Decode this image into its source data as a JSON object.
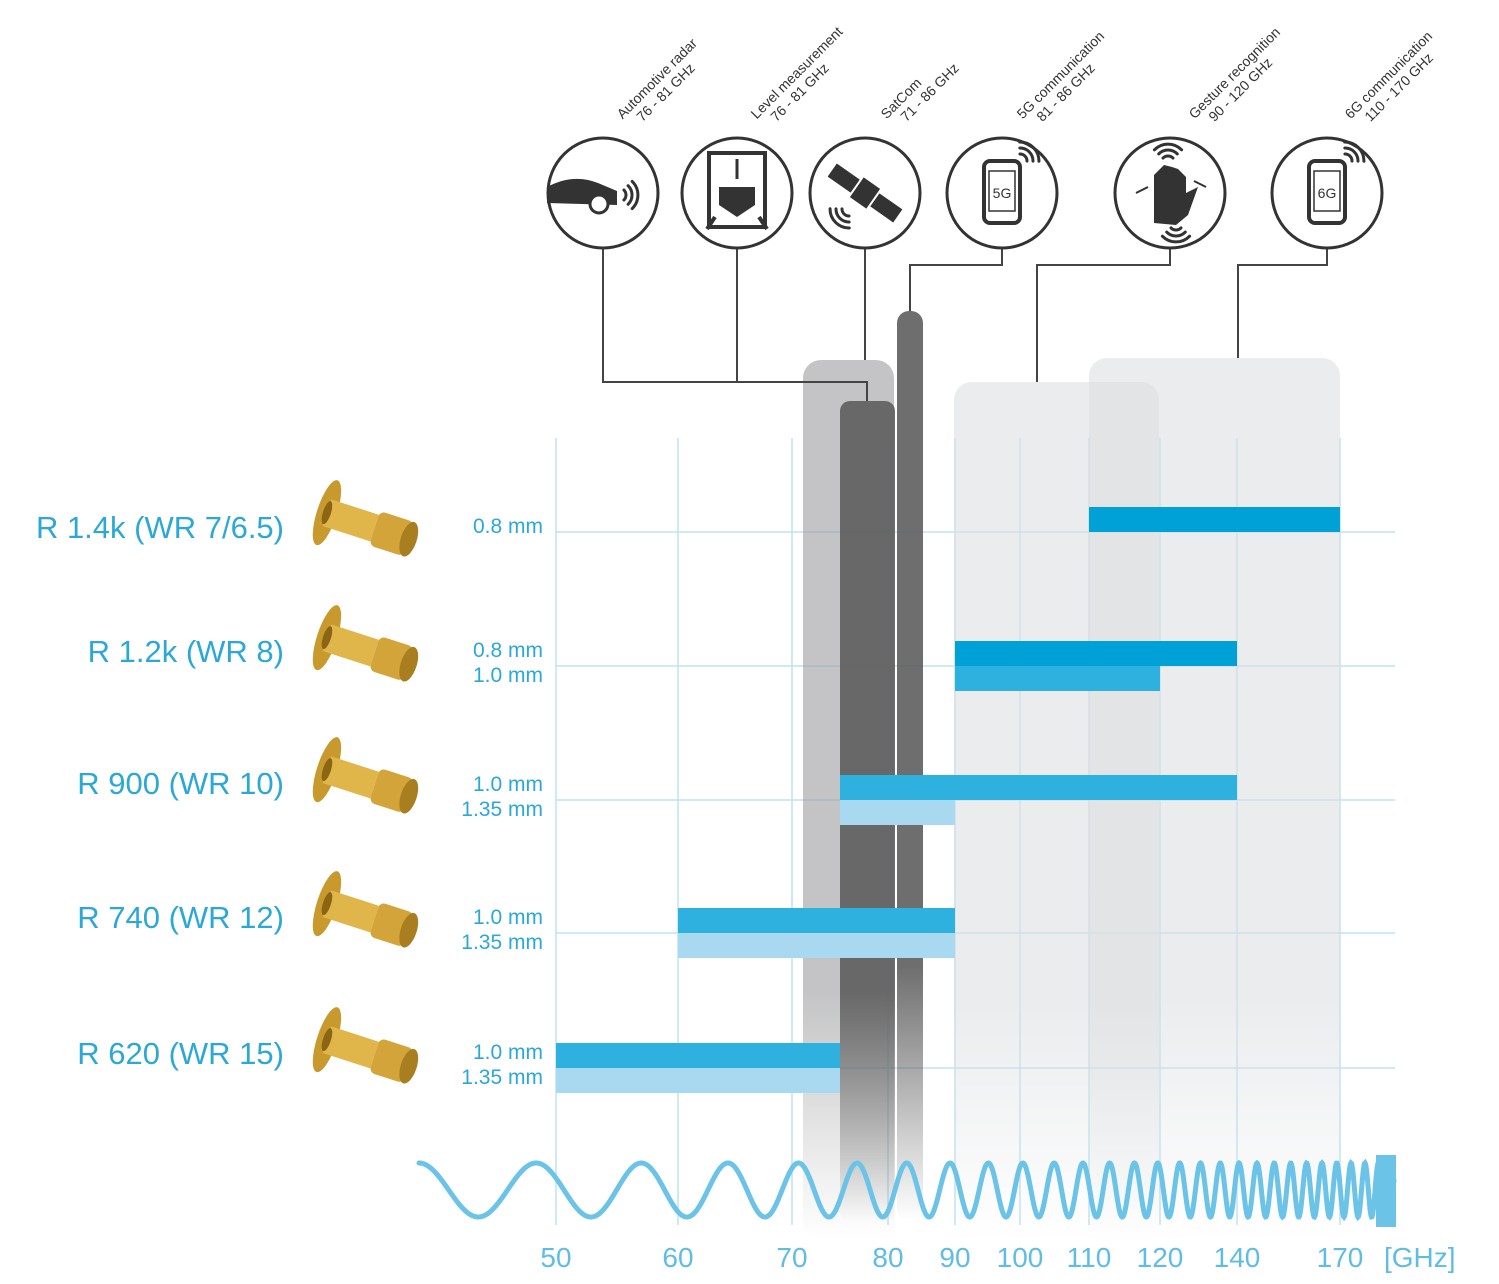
{
  "chart_data": {
    "type": "bar",
    "unit_label": "[GHz]",
    "x_ticks": [
      "50",
      "60",
      "70",
      "80",
      "90",
      "100",
      "110",
      "120",
      "140",
      "170"
    ],
    "products": [
      {
        "name": "R 1.4k (WR 7/6.5)",
        "bands": [
          {
            "label": "0.8 mm",
            "from": 110,
            "to": 170
          }
        ]
      },
      {
        "name": "R 1.2k (WR 8)",
        "bands": [
          {
            "label": "0.8 mm",
            "from": 90,
            "to": 140
          },
          {
            "label": "1.0 mm",
            "from": 90,
            "to": 120
          }
        ]
      },
      {
        "name": "R 900 (WR 10)",
        "bands": [
          {
            "label": "1.0 mm",
            "from": 75,
            "to": 140
          },
          {
            "label": "1.35 mm",
            "from": 75,
            "to": 90
          }
        ]
      },
      {
        "name": "R 740 (WR 12)",
        "bands": [
          {
            "label": "1.0 mm",
            "from": 60,
            "to": 90
          },
          {
            "label": "1.35 mm",
            "from": 60,
            "to": 90
          }
        ]
      },
      {
        "name": "R 620 (WR 15)",
        "bands": [
          {
            "label": "1.0 mm",
            "from": 50,
            "to": 75
          },
          {
            "label": "1.35 mm",
            "from": 50,
            "to": 75
          }
        ]
      }
    ],
    "applications": [
      {
        "name": "Automotive radar",
        "range": "76 - 81 GHz",
        "icon": "car-radar-icon",
        "from": 76,
        "to": 81
      },
      {
        "name": "Level measurement",
        "range": "76 - 81 GHz",
        "icon": "level-tank-icon",
        "from": 76,
        "to": 81
      },
      {
        "name": "SatCom",
        "range": "71 - 86 GHz",
        "icon": "satellite-icon",
        "from": 71,
        "to": 86
      },
      {
        "name": "5G communication",
        "range": "81 - 86 GHz",
        "icon": "phone-5g-icon",
        "text": "5G",
        "from": 81,
        "to": 86
      },
      {
        "name": "Gesture recognition",
        "range": "90 - 120 GHz",
        "icon": "hand-gesture-icon",
        "from": 90,
        "to": 120
      },
      {
        "name": "6G communication",
        "range": "110 - 170 GHz",
        "icon": "phone-6g-icon",
        "text": "6G",
        "from": 110,
        "to": 170
      }
    ],
    "colors": {
      "band_08": "#00a1d6",
      "band_10": "#2eb1de",
      "band_135": "#a9d9f0",
      "grid": "#bfe3f3",
      "wave": "#6cc3e8"
    }
  }
}
